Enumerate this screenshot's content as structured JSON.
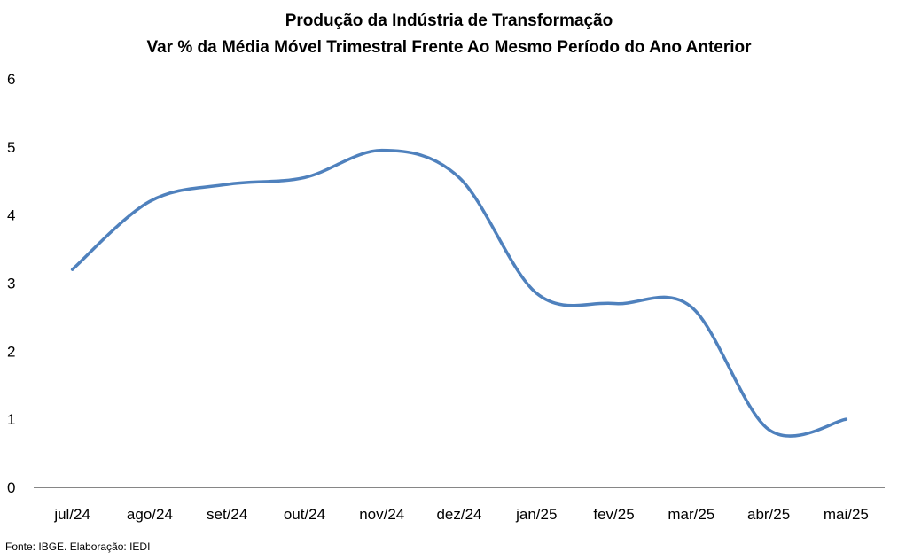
{
  "chart_data": {
    "type": "line",
    "title": "Produção da Indústria de Transformação",
    "subtitle": "Var % da Média Móvel Trimestral Frente Ao Mesmo Período do Ano Anterior",
    "xlabel": "",
    "ylabel": "",
    "categories": [
      "jul/24",
      "ago/24",
      "set/24",
      "out/24",
      "nov/24",
      "dez/24",
      "jan/25",
      "fev/25",
      "mar/25",
      "abr/25",
      "mai/25"
    ],
    "series": [
      {
        "values": [
          3.2,
          4.2,
          4.45,
          4.55,
          4.95,
          4.55,
          2.85,
          2.7,
          2.65,
          0.85,
          1.0
        ]
      }
    ],
    "ylim": [
      0,
      6
    ],
    "yticks": [
      0,
      1,
      2,
      3,
      4,
      5,
      6
    ],
    "grid": false,
    "legend": "none",
    "line_color": "#4f81bd"
  },
  "source": "Fonte: IBGE. Elaboração: IEDI"
}
